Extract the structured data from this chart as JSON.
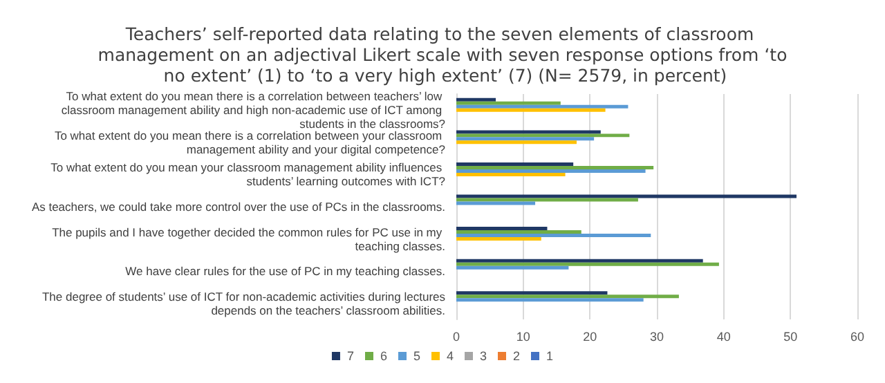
{
  "chart_data": {
    "type": "bar",
    "orientation": "horizontal",
    "title": "Teachers’ self-reported data relating to the seven elements of classroom management on an adjectival Likert scale with seven response options from ‘to no extent’ (1) to ‘to a very high extent’ (7) (N= 2579, in percent)",
    "categories": [
      "To what extent do you mean there is a correlation between teachers’ low classroom management ability and high non-academic use of ICT among students in the classrooms?",
      "To what extent do you mean there is a correlation between your classroom management ability and your digital competence?",
      "To what extent do you mean your classroom management ability influences students’ learning outcomes with ICT?",
      "As teachers, we could take more control over the use of PCs in the classrooms.",
      "The pupils and I have together decided the common rules for PC use in my teaching classes.",
      "We have clear rules for the use of PC in my teaching classes.",
      "The degree of students’ use of ICT for non-academic activities during lectures depends on the teachers’ classroom abilities."
    ],
    "series": [
      {
        "name": "7",
        "color": "#1f3864",
        "values": [
          5.9,
          21.6,
          17.5,
          50.9,
          13.6,
          36.9,
          22.6
        ]
      },
      {
        "name": "6",
        "color": "#70ad47",
        "values": [
          15.6,
          25.9,
          29.5,
          27.2,
          18.7,
          39.3,
          33.3
        ]
      },
      {
        "name": "5",
        "color": "#5b9bd5",
        "values": [
          25.7,
          20.6,
          28.3,
          11.8,
          29.1,
          16.8,
          28.0
        ]
      },
      {
        "name": "4",
        "color": "#ffc000",
        "values": [
          22.3,
          18.0,
          16.3,
          null,
          12.7,
          null,
          null
        ]
      },
      {
        "name": "3",
        "color": "#a5a5a5",
        "values": [
          null,
          null,
          null,
          null,
          null,
          null,
          null
        ]
      },
      {
        "name": "2",
        "color": "#ed7d31",
        "values": [
          null,
          null,
          null,
          null,
          null,
          null,
          null
        ]
      },
      {
        "name": "1",
        "color": "#4472c4",
        "values": [
          null,
          null,
          null,
          null,
          null,
          null,
          null
        ]
      }
    ],
    "xlim": [
      0,
      60
    ],
    "xticks": [
      0,
      10,
      20,
      30,
      40,
      50,
      60
    ],
    "grid": "x",
    "legend": "bottom"
  }
}
